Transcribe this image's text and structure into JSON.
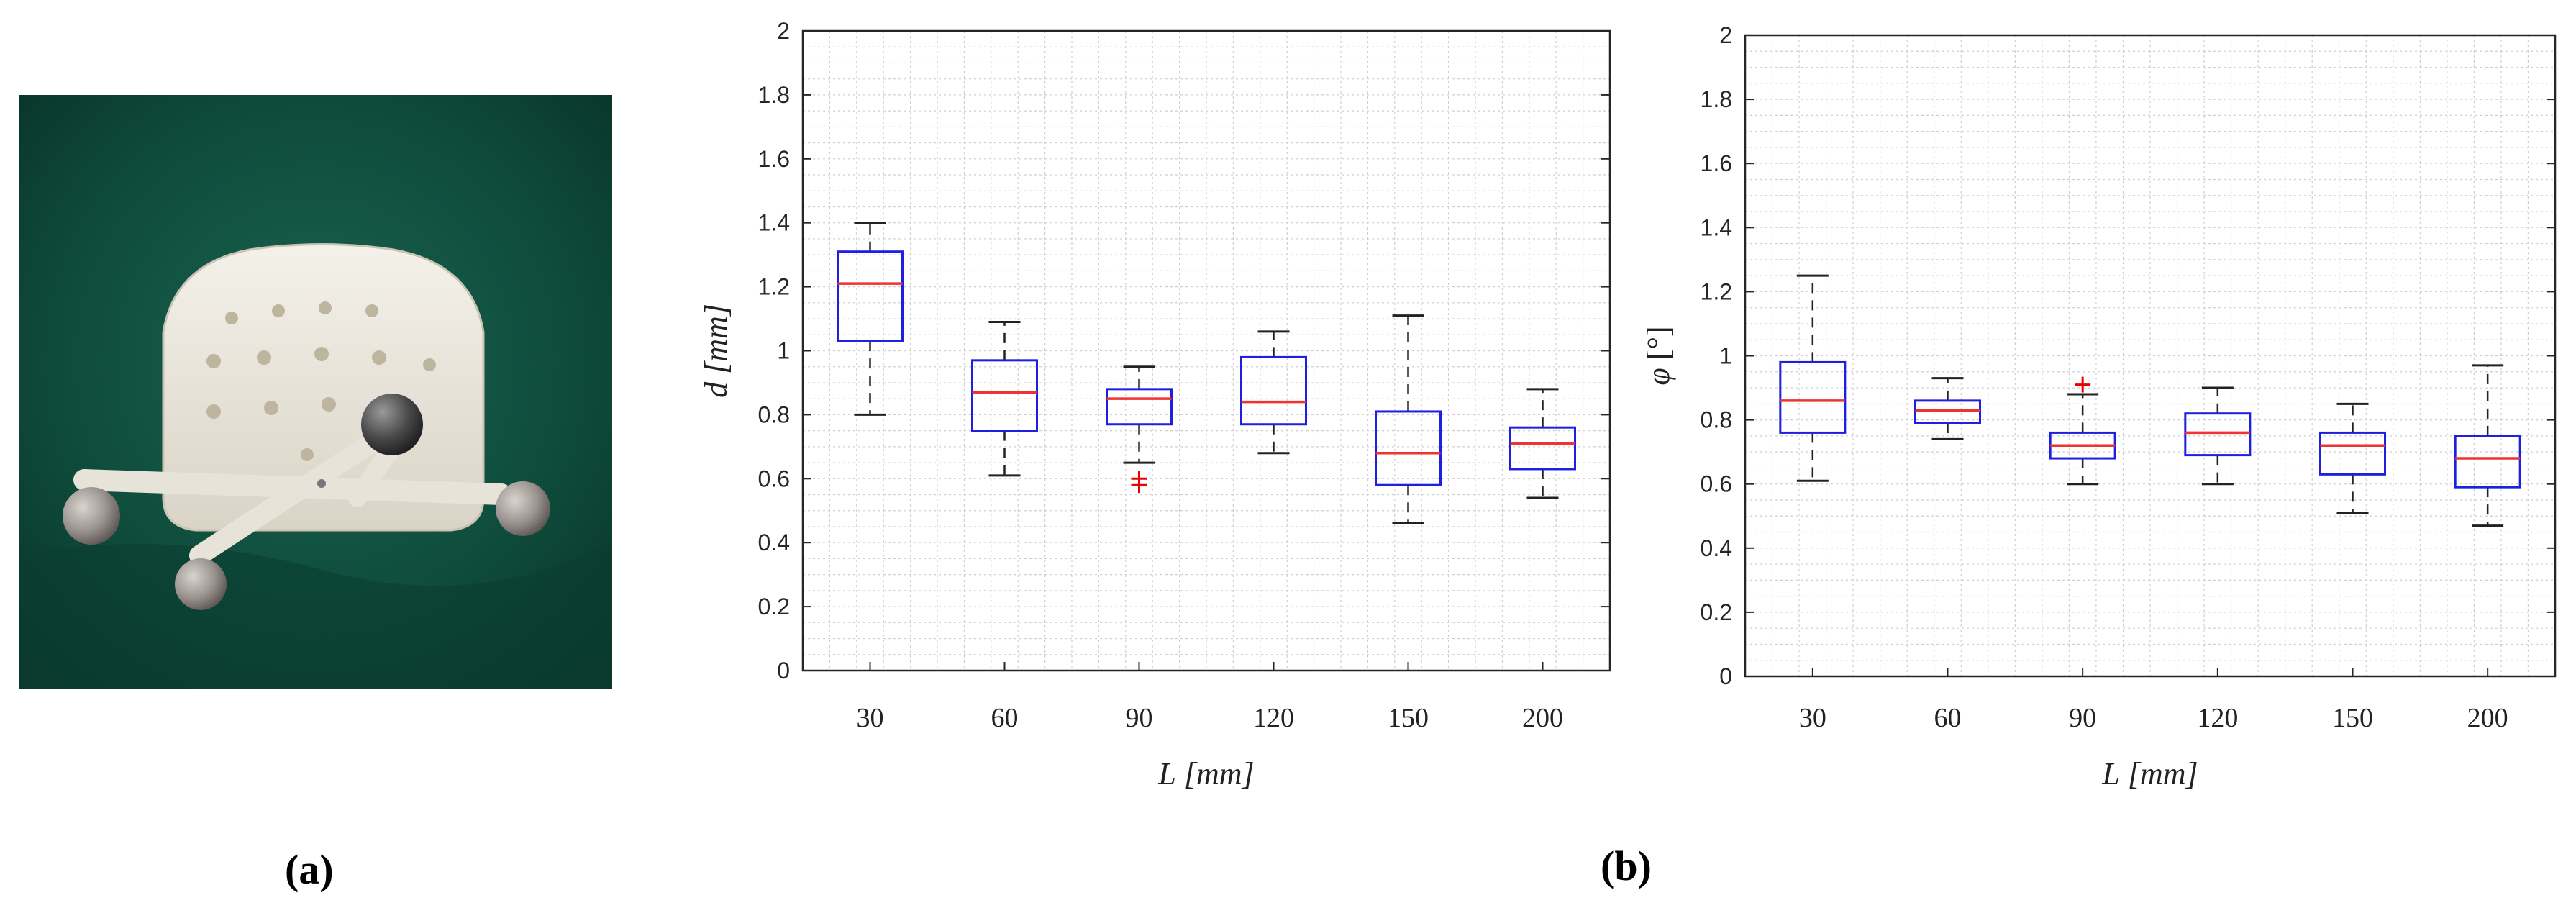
{
  "figure": {
    "label_a": "(a)",
    "label_b": "(b)"
  },
  "colors": {
    "box": "#1f1fe0",
    "median": "#ee3333",
    "outlier": "#ee0000",
    "whisker": "#222222",
    "grid": "#cfcfcf",
    "background_green": "#0f4a3b",
    "phantom": "#ece8dc"
  },
  "photo": {
    "icon": "skull-phantom-with-optical-markers-photo"
  },
  "chart_data": [
    {
      "type": "box",
      "xlabel_symbol": "L",
      "xlabel_unit": "[mm]",
      "ylabel_symbol": "d",
      "ylabel_unit": "[mm]",
      "categories": [
        "30",
        "60",
        "90",
        "120",
        "150",
        "200"
      ],
      "ylim": [
        0,
        2
      ],
      "yticks": [
        0,
        0.2,
        0.4,
        0.6,
        0.8,
        1,
        1.2,
        1.4,
        1.6,
        1.8,
        2
      ],
      "ytick_labels": [
        "0",
        "0.2",
        "0.4",
        "0.6",
        "0.8",
        "1",
        "1.2",
        "1.4",
        "1.6",
        "1.8",
        "2"
      ],
      "grid": "minor",
      "boxes": [
        {
          "whisker_low": 0.8,
          "q1": 1.03,
          "median": 1.21,
          "q3": 1.31,
          "whisker_high": 1.4,
          "outliers": []
        },
        {
          "whisker_low": 0.61,
          "q1": 0.75,
          "median": 0.87,
          "q3": 0.97,
          "whisker_high": 1.09,
          "outliers": []
        },
        {
          "whisker_low": 0.65,
          "q1": 0.77,
          "median": 0.85,
          "q3": 0.88,
          "whisker_high": 0.95,
          "outliers": [
            0.6,
            0.58
          ]
        },
        {
          "whisker_low": 0.68,
          "q1": 0.77,
          "median": 0.84,
          "q3": 0.98,
          "whisker_high": 1.06,
          "outliers": []
        },
        {
          "whisker_low": 0.46,
          "q1": 0.58,
          "median": 0.68,
          "q3": 0.81,
          "whisker_high": 1.11,
          "outliers": []
        },
        {
          "whisker_low": 0.54,
          "q1": 0.63,
          "median": 0.71,
          "q3": 0.76,
          "whisker_high": 0.88,
          "outliers": []
        }
      ]
    },
    {
      "type": "box",
      "xlabel_symbol": "L",
      "xlabel_unit": "[mm]",
      "ylabel_symbol": "φ",
      "ylabel_unit": "[°]",
      "categories": [
        "30",
        "60",
        "90",
        "120",
        "150",
        "200"
      ],
      "ylim": [
        0,
        2
      ],
      "yticks": [
        0,
        0.2,
        0.4,
        0.6,
        0.8,
        1,
        1.2,
        1.4,
        1.6,
        1.8,
        2
      ],
      "ytick_labels": [
        "0",
        "0.2",
        "0.4",
        "0.6",
        "0.8",
        "1",
        "1.2",
        "1.4",
        "1.6",
        "1.8",
        "2"
      ],
      "grid": "minor",
      "boxes": [
        {
          "whisker_low": 0.61,
          "q1": 0.76,
          "median": 0.86,
          "q3": 0.98,
          "whisker_high": 1.25,
          "outliers": []
        },
        {
          "whisker_low": 0.74,
          "q1": 0.79,
          "median": 0.83,
          "q3": 0.86,
          "whisker_high": 0.93,
          "outliers": []
        },
        {
          "whisker_low": 0.6,
          "q1": 0.68,
          "median": 0.72,
          "q3": 0.76,
          "whisker_high": 0.88,
          "outliers": [
            0.91
          ]
        },
        {
          "whisker_low": 0.6,
          "q1": 0.69,
          "median": 0.76,
          "q3": 0.82,
          "whisker_high": 0.9,
          "outliers": []
        },
        {
          "whisker_low": 0.51,
          "q1": 0.63,
          "median": 0.72,
          "q3": 0.76,
          "whisker_high": 0.85,
          "outliers": []
        },
        {
          "whisker_low": 0.47,
          "q1": 0.59,
          "median": 0.68,
          "q3": 0.75,
          "whisker_high": 0.97,
          "outliers": []
        }
      ]
    }
  ]
}
